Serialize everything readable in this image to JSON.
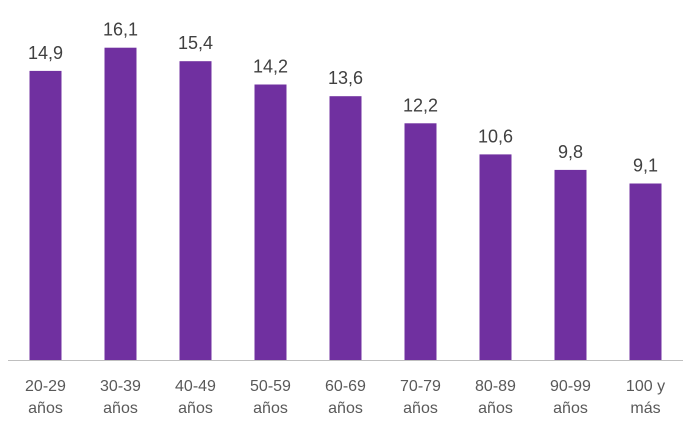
{
  "chart_data": {
    "type": "bar",
    "categories": [
      [
        "20-29",
        "años"
      ],
      [
        "30-39",
        "años"
      ],
      [
        "40-49",
        "años"
      ],
      [
        "50-59",
        "años"
      ],
      [
        "60-69",
        "años"
      ],
      [
        "70-79",
        "años"
      ],
      [
        "80-89",
        "años"
      ],
      [
        "90-99",
        "años"
      ],
      [
        "100 y",
        "más"
      ]
    ],
    "values": [
      14.9,
      16.1,
      15.4,
      14.2,
      13.6,
      12.2,
      10.6,
      9.8,
      9.1
    ],
    "value_labels": [
      "14,9",
      "16,1",
      "15,4",
      "14,2",
      "13,6",
      "12,2",
      "10,6",
      "9,8",
      "9,1"
    ],
    "ylim": [
      0,
      18
    ],
    "grid": false,
    "bar_color": "#7030a0",
    "axis_color": "#bfbfbf",
    "title": "",
    "xlabel": "",
    "ylabel": ""
  }
}
